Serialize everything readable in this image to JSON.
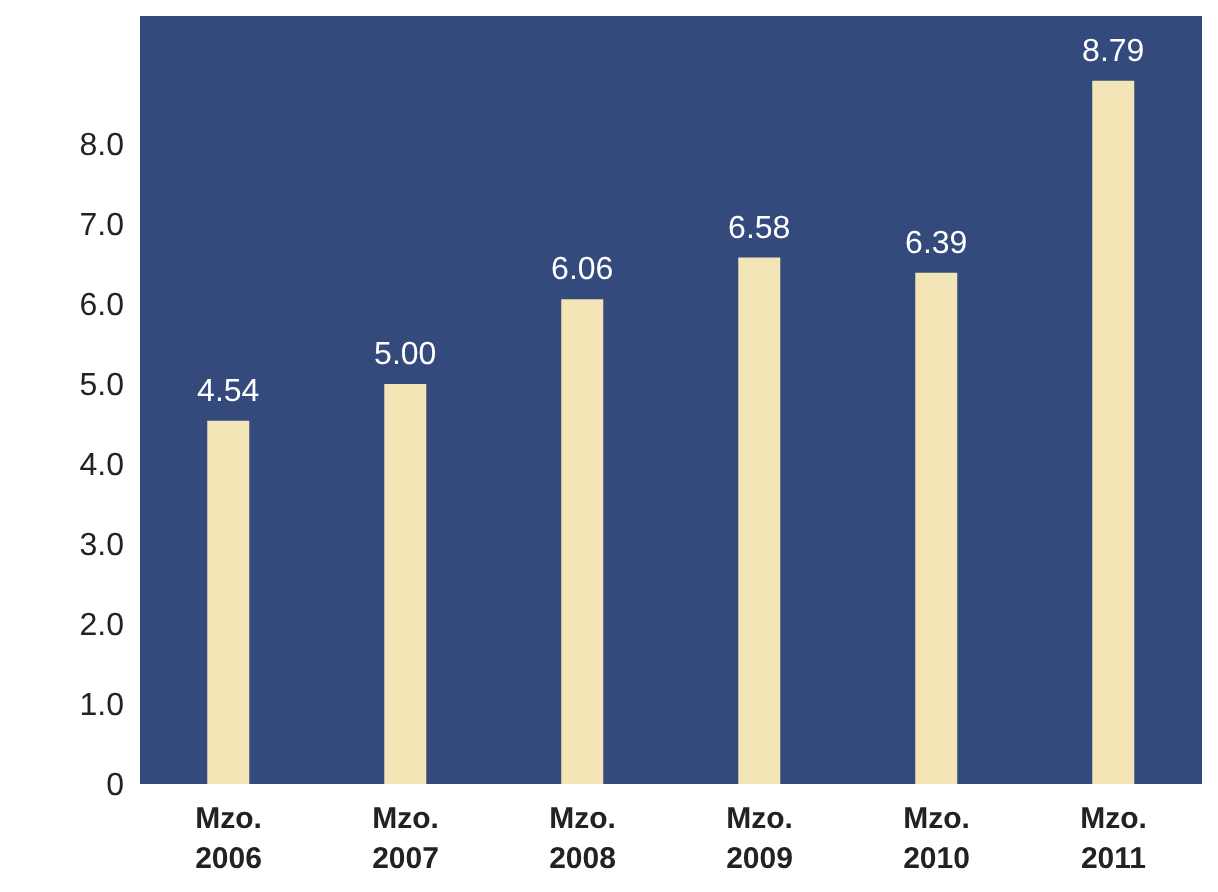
{
  "chart_data": {
    "type": "bar",
    "categories": [
      "Mzo. 2006",
      "Mzo. 2007",
      "Mzo. 2008",
      "Mzo. 2009",
      "Mzo. 2010",
      "Mzo. 2011"
    ],
    "values": [
      4.54,
      5.0,
      6.06,
      6.58,
      6.39,
      8.79
    ],
    "value_labels": [
      "4.54",
      "5.00",
      "6.06",
      "6.58",
      "6.39",
      "8.79"
    ],
    "color": "#f3e5b5",
    "ylim": [
      0,
      9.6
    ],
    "yticks": [
      0,
      {
        "value": 1,
        "label": "1.0"
      },
      {
        "value": 2,
        "label": "2.0"
      },
      {
        "value": 3,
        "label": "3.0"
      },
      {
        "value": 4,
        "label": "4.0"
      },
      {
        "value": 5,
        "label": "5.0"
      },
      {
        "value": 6,
        "label": "6.0"
      },
      {
        "value": 7,
        "label": "7.0"
      },
      {
        "value": 8,
        "label": "8.0"
      }
    ]
  }
}
